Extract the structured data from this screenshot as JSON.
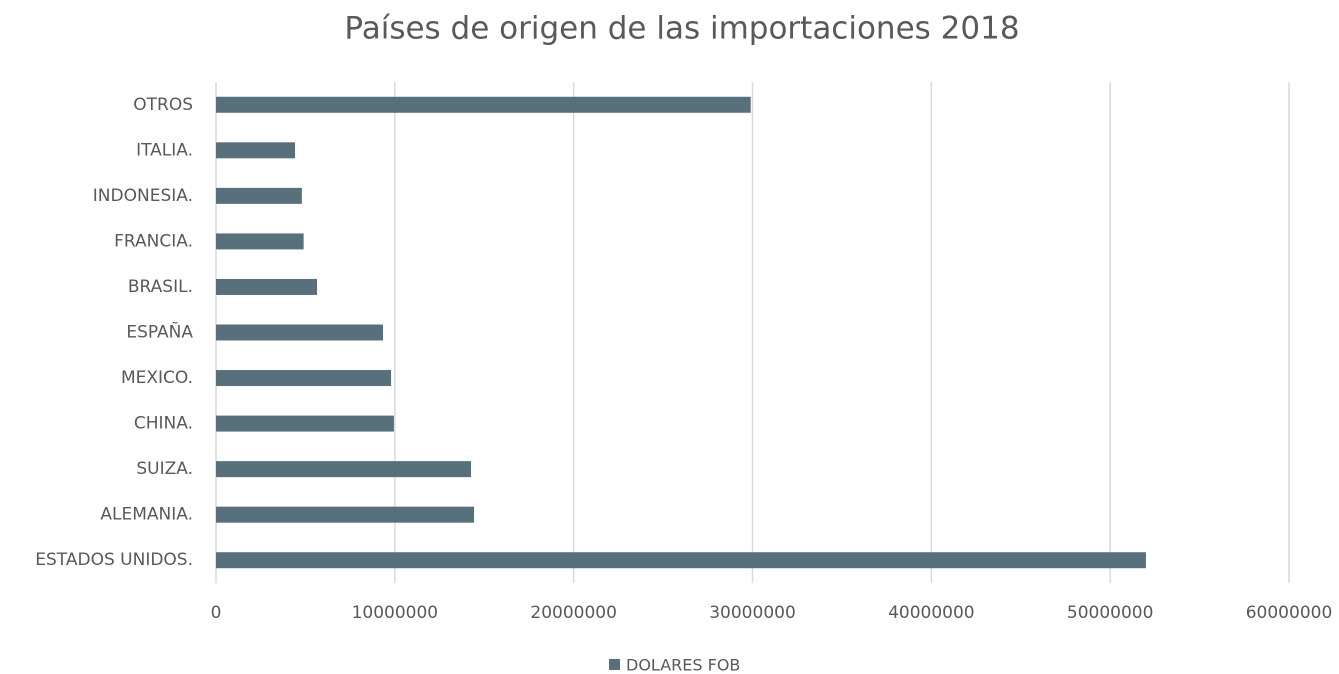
{
  "chart_data": {
    "type": "bar",
    "orientation": "horizontal",
    "title": "Países de origen de las importaciones 2018",
    "categories": [
      "ESTADOS UNIDOS.",
      "ALEMANIA.",
      "SUIZA.",
      "CHINA.",
      "MEXICO.",
      "ESPAÑA",
      "BRASIL.",
      "FRANCIA.",
      "INDONESIA.",
      "ITALIA.",
      "OTROS"
    ],
    "series": [
      {
        "name": "DOLARES FOB",
        "color": "#586f7c",
        "values": [
          52000000,
          14430000,
          14260000,
          9950000,
          9790000,
          9340000,
          5650000,
          4900000,
          4800000,
          4420000,
          29900000
        ]
      }
    ],
    "xlim": [
      0,
      60000000
    ],
    "xticks": [
      0,
      10000000,
      20000000,
      30000000,
      40000000,
      50000000,
      60000000
    ],
    "grid": true,
    "legend": "bottom"
  }
}
